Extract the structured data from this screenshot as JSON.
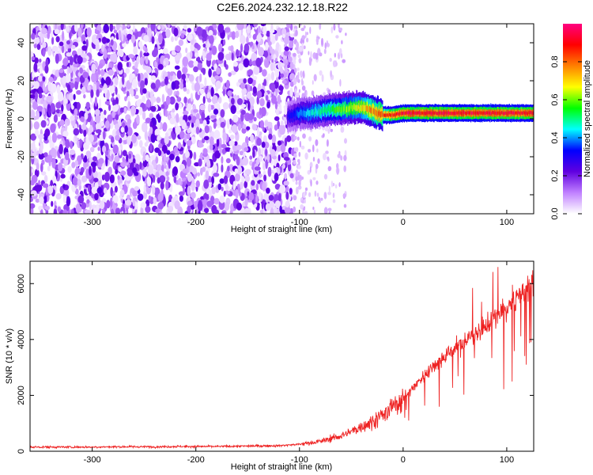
{
  "title": "C2E6.2024.232.12.18.R22",
  "chart_data": [
    {
      "type": "heatmap",
      "xlabel": "Height of straight line (km)",
      "ylabel": "Frequency (Hz)",
      "xlim": [
        -360,
        126
      ],
      "ylim": [
        -50,
        50
      ],
      "x_ticks": [
        -300,
        -200,
        -100,
        0,
        100
      ],
      "y_ticks": [
        -40,
        -20,
        0,
        20,
        40
      ],
      "colorbar": {
        "label": "Normalized spectral amplitude",
        "range": [
          0,
          1
        ],
        "ticks": [
          0.0,
          0.2,
          0.4,
          0.6,
          0.8
        ],
        "tick_labels": [
          "0.0",
          "0.2",
          "0.4",
          "0.6",
          "0.8"
        ],
        "colormap": [
          "#ffffff",
          "#c080ff",
          "#6000e0",
          "#0000ff",
          "#00ffff",
          "#00ff00",
          "#ffff00",
          "#ff8000",
          "#ff0000",
          "#ff0080"
        ]
      },
      "regions": [
        {
          "x_range": [
            -360,
            -105
          ],
          "freq_range": [
            -50,
            50
          ],
          "amplitude": "low (noise, purple)"
        },
        {
          "x_range": [
            -105,
            -55
          ],
          "freq_range": [
            -50,
            50
          ],
          "amplitude": "sparse, very low"
        },
        {
          "x_range": [
            -112,
            126
          ],
          "center_freq": 3,
          "amplitude": "high (narrow signal band)"
        }
      ],
      "signal_band": {
        "x": [
          -112,
          -100,
          -90,
          -80,
          -70,
          -60,
          -50,
          -40,
          -30,
          -20,
          -10,
          0,
          20,
          40,
          60,
          80,
          100,
          126
        ],
        "center_freq": [
          1,
          3,
          3,
          4,
          5,
          5,
          6,
          6,
          4,
          2,
          2,
          3,
          3,
          3,
          3,
          3,
          3,
          3
        ],
        "peak_amplitude": [
          0.3,
          0.4,
          0.45,
          0.5,
          0.55,
          0.6,
          0.65,
          0.7,
          0.8,
          0.85,
          0.9,
          0.95,
          0.95,
          0.95,
          0.95,
          0.95,
          0.95,
          0.95
        ]
      }
    },
    {
      "type": "line",
      "xlabel": "Height of straight line (km)",
      "ylabel": "SNR (10 * v/v)",
      "xlim": [
        -360,
        126
      ],
      "ylim": [
        0,
        6800
      ],
      "x_ticks": [
        -300,
        -200,
        -100,
        0,
        100
      ],
      "y_ticks": [
        0,
        2000,
        4000,
        6000
      ],
      "color": "#ee2222",
      "series": [
        {
          "x": [
            -360,
            -340,
            -320,
            -300,
            -280,
            -260,
            -240,
            -220,
            -200,
            -180,
            -160,
            -140,
            -120,
            -100,
            -90,
            -80,
            -70,
            -60,
            -50,
            -40,
            -30,
            -20,
            -10,
            0,
            10,
            20,
            30,
            40,
            50,
            60,
            70,
            80,
            90,
            100,
            110,
            120,
            126
          ],
          "values": [
            150,
            150,
            150,
            150,
            160,
            160,
            160,
            170,
            170,
            170,
            180,
            190,
            200,
            250,
            300,
            350,
            450,
            550,
            700,
            900,
            1050,
            1300,
            1600,
            1900,
            2300,
            2700,
            3100,
            3400,
            3700,
            3950,
            4200,
            4500,
            4800,
            5100,
            5500,
            5900,
            6100
          ]
        }
      ]
    }
  ]
}
